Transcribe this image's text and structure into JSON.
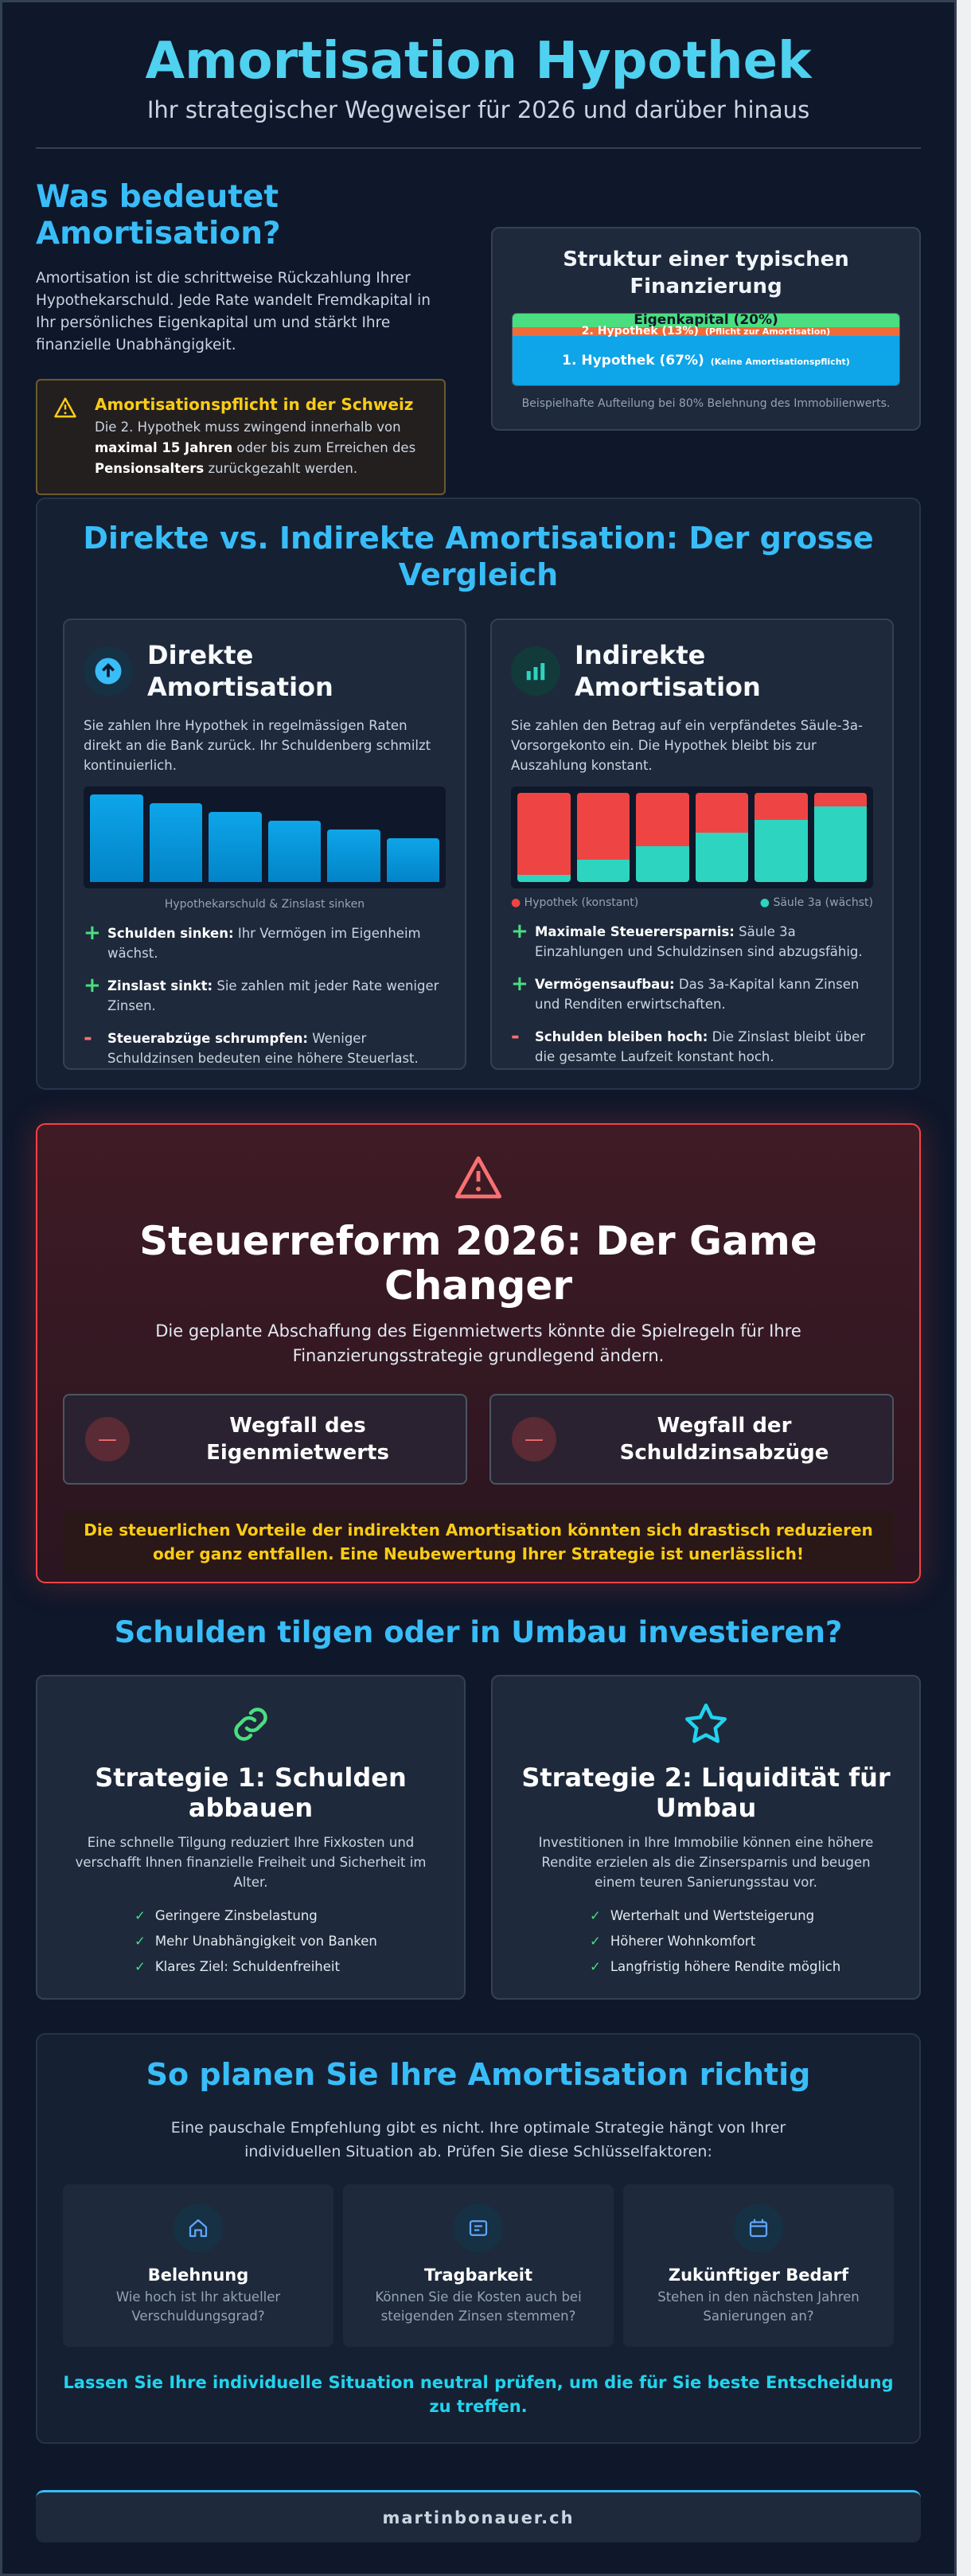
{
  "header": {
    "title": "Amortisation Hypothek",
    "subtitle": "Ihr strategischer Wegweiser für 2026 und darüber hinaus"
  },
  "intro": {
    "heading": "Was bedeutet Amortisation?",
    "text": "Amortisation ist die schrittweise Rückzahlung Ihrer Hypothekarschuld. Jede Rate wandelt Fremdkapital in Ihr persönliches Eigenkapital um und stärkt Ihre finanzielle Unabhängigkeit.",
    "warning": {
      "title": "Amortisationspflicht in der Schweiz",
      "parts": [
        "Die 2. Hypothek muss zwingend innerhalb von ",
        "maximal 15 Jahren",
        " oder bis zum Erreichen des ",
        "Pensionsalters",
        " zurückgezahlt werden."
      ]
    }
  },
  "financing": {
    "title": "Struktur einer typischen Finanzierung",
    "segments": [
      {
        "label": "Eigenkapital (20%)"
      },
      {
        "label": "2. Hypothek (13%)",
        "note": "(Pflicht zur Amortisation)"
      },
      {
        "label": "1. Hypothek (67%)",
        "note": "(Keine Amortisationspflicht)"
      }
    ],
    "caption": "Beispielhafte Aufteilung bei 80% Belehnung des Immobilienwerts."
  },
  "comparison": {
    "title": "Direkte vs. Indirekte Amortisation: Der grosse Vergleich",
    "direct": {
      "title": "Direkte Amortisation",
      "text": "Sie zahlen Ihre Hypothek in regelmässigen Raten direkt an die Bank zurück. Ihr Schuldenberg schmilzt kontinuierlich.",
      "caption": "Hypothekarschuld & Zinslast sinken",
      "points": [
        {
          "sign": "+",
          "bold": "Schulden sinken:",
          "text": " Ihr Vermögen im Eigenheim wächst."
        },
        {
          "sign": "+",
          "bold": "Zinslast sinkt:",
          "text": " Sie zahlen mit jeder Rate weniger Zinsen."
        },
        {
          "sign": "-",
          "bold": "Steuerabzüge schrumpfen:",
          "text": " Weniger Schuldzinsen bedeuten eine höhere Steuerlast."
        }
      ]
    },
    "indirect": {
      "title": "Indirekte Amortisation",
      "text": "Sie zahlen den Betrag auf ein verpfändetes Säule-3a-Vorsorgekonto ein. Die Hypothek bleibt bis zur Auszahlung konstant.",
      "legend": [
        "Hypothek (konstant)",
        "Säule 3a (wächst)"
      ],
      "points": [
        {
          "sign": "+",
          "bold": "Maximale Steuerersparnis:",
          "text": " Säule 3a Einzahlungen und Schuldzinsen sind abzugsfähig."
        },
        {
          "sign": "+",
          "bold": "Vermögensaufbau:",
          "text": " Das 3a-Kapital kann Zinsen und Renditen erwirtschaften."
        },
        {
          "sign": "-",
          "bold": "Schulden bleiben hoch:",
          "text": " Die Zinslast bleibt über die gesamte Laufzeit konstant hoch."
        }
      ]
    }
  },
  "tax": {
    "title": "Steuerreform 2026: Der Game Changer",
    "text": "Die geplante Abschaffung des Eigenmietwerts könnte die Spielregeln für Ihre Finanzierungsstrategie grundlegend ändern.",
    "items": [
      {
        "sign": "—",
        "label": "Wegfall des Eigenmietwerts"
      },
      {
        "sign": "—",
        "label": "Wegfall der Schuldzinsabzüge"
      }
    ],
    "conclusion": "Die steuerlichen Vorteile der indirekten Amortisation könnten sich drastisch reduzieren oder ganz entfallen. Eine Neubewertung Ihrer Strategie ist unerlässlich!"
  },
  "strategies": {
    "title": "Schulden tilgen oder in Umbau investieren?",
    "cards": [
      {
        "title": "Strategie 1: Schulden abbauen",
        "text": "Eine schnelle Tilgung reduziert Ihre Fixkosten und verschafft Ihnen finanzielle Freiheit und Sicherheit im Alter.",
        "check": "✓",
        "benefits": [
          "Geringere Zinsbelastung",
          "Mehr Unabhängigkeit von Banken",
          "Klares Ziel: Schuldenfreiheit"
        ]
      },
      {
        "title": "Strategie 2: Liquidität für Umbau",
        "text": "Investitionen in Ihre Immobilie können eine höhere Rendite erzielen als die Zinsersparnis und beugen einem teuren Sanierungsstau vor.",
        "check": "✓",
        "benefits": [
          "Werterhalt und Wertsteigerung",
          "Höherer Wohnkomfort",
          "Langfristig höhere Rendite möglich"
        ]
      }
    ]
  },
  "planning": {
    "title": "So planen Sie Ihre Amortisation richtig",
    "text": "Eine pauschale Empfehlung gibt es nicht. Ihre optimale Strategie hängt von Ihrer individuellen Situation ab. Prüfen Sie diese Schlüsselfaktoren:",
    "factors": [
      {
        "title": "Belehnung",
        "text": "Wie hoch ist Ihr aktueller Verschuldungsgrad?"
      },
      {
        "title": "Tragbarkeit",
        "text": "Können Sie die Kosten auch bei steigenden Zinsen stemmen?"
      },
      {
        "title": "Zukünftiger Bedarf",
        "text": "Stehen in den nächsten Jahren Sanierungen an?"
      }
    ],
    "cta": "Lassen Sie Ihre individuelle Situation neutral prüfen, um die für Sie beste Entscheidung zu treffen."
  },
  "footer": {
    "text": "martinbonauer.ch"
  }
}
